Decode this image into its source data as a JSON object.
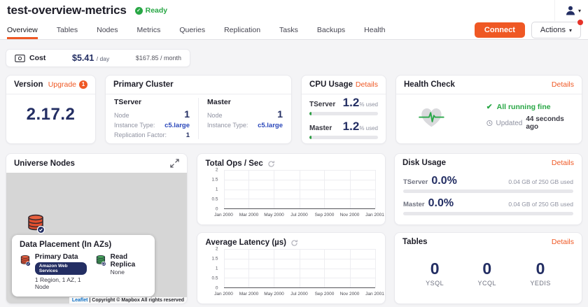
{
  "colors": {
    "accent_orange": "#ef5824",
    "navy": "#232e63",
    "green": "#28a745",
    "link_blue": "#2b48ba",
    "map_gray": "#d6d6d6"
  },
  "header": {
    "title": "test-overview-metrics",
    "status": "Ready"
  },
  "nav": {
    "tabs": [
      "Overview",
      "Tables",
      "Nodes",
      "Metrics",
      "Queries",
      "Replication",
      "Tasks",
      "Backups",
      "Health"
    ],
    "active_tab": "Overview",
    "connect": "Connect",
    "actions": "Actions"
  },
  "cost": {
    "label": "Cost",
    "per_day_value": "$5.41",
    "per_day_unit": "/ day",
    "per_month": "$167.85 / month"
  },
  "version": {
    "title": "Version",
    "upgrade": "Upgrade",
    "upgrade_count": "1",
    "value": "2.17.2"
  },
  "primary_cluster": {
    "title": "Primary Cluster",
    "tserver": {
      "title": "TServer",
      "node_label": "Node",
      "node_value": "1",
      "instance_label": "Instance Type:",
      "instance_value": "c5.large",
      "rf_label": "Replication Factor:",
      "rf_value": "1"
    },
    "master": {
      "title": "Master",
      "node_label": "Node",
      "node_value": "1",
      "instance_label": "Instance Type:",
      "instance_value": "c5.large"
    }
  },
  "cpu": {
    "title": "CPU Usage",
    "details": "Details",
    "tserver": {
      "label": "TServer",
      "value": "1.2",
      "unit": "% used",
      "fill_pct": 3
    },
    "master": {
      "label": "Master",
      "value": "1.2",
      "unit": "% used",
      "fill_pct": 3
    }
  },
  "health": {
    "title": "Health Check",
    "details": "Details",
    "status": "All running fine",
    "updated_label": "Updated",
    "updated_value": "44 seconds ago"
  },
  "universe_nodes": {
    "title": "Universe Nodes",
    "placement": {
      "title": "Data Placement (In AZs)",
      "primary_label": "Primary Data",
      "primary_provider": "Amazon Web Services",
      "primary_summary": "1 Region, 1 AZ, 1 Node",
      "replica_label": "Read Replica",
      "replica_value": "None"
    },
    "attribution_link": "Leaflet",
    "attribution_text": "| Copyright © Mapbox All rights reserved"
  },
  "disk": {
    "title": "Disk Usage",
    "details": "Details",
    "tserver": {
      "label": "TServer",
      "value": "0.0%",
      "detail": "0.04 GB of 250 GB used",
      "fill_pct": 0
    },
    "master": {
      "label": "Master",
      "value": "0.0%",
      "detail": "0.04 GB of 250 GB used",
      "fill_pct": 0
    }
  },
  "tables": {
    "title": "Tables",
    "details": "Details",
    "stats": [
      {
        "value": "0",
        "label": "YSQL"
      },
      {
        "value": "0",
        "label": "YCQL"
      },
      {
        "value": "0",
        "label": "YEDIS"
      }
    ]
  },
  "chart_data": [
    {
      "type": "line",
      "title": "Total Ops / Sec",
      "x_ticks": [
        "Jan 2000",
        "Mar 2000",
        "May 2000",
        "Jul 2000",
        "Sep 2000",
        "Nov 2000",
        "Jan 2001"
      ],
      "y_ticks": [
        "2",
        "1.5",
        "1",
        "0.5",
        "0"
      ],
      "ylim": [
        0,
        2
      ],
      "grid": true,
      "legend": "none",
      "series": []
    },
    {
      "type": "line",
      "title": "Average Latency (µs)",
      "x_ticks": [
        "Jan 2000",
        "Mar 2000",
        "May 2000",
        "Jul 2000",
        "Sep 2000",
        "Nov 2000",
        "Jan 2001"
      ],
      "y_ticks": [
        "2",
        "1.5",
        "1",
        "0.5",
        "0"
      ],
      "ylim": [
        0,
        2
      ],
      "grid": true,
      "legend": "none",
      "series": []
    }
  ]
}
